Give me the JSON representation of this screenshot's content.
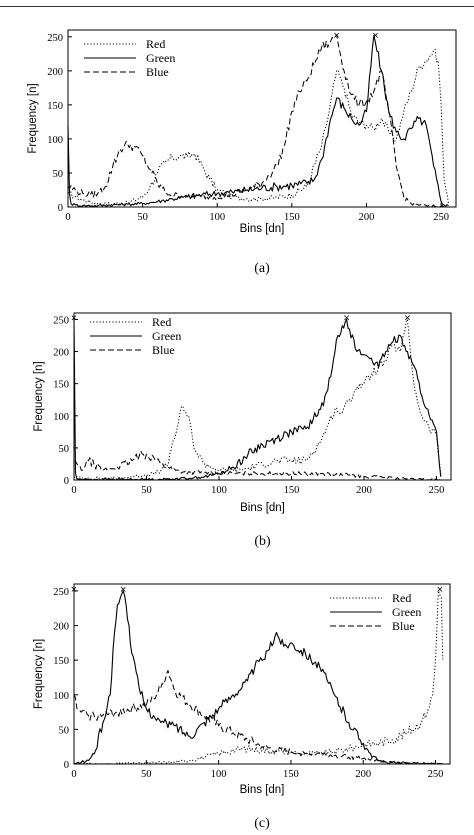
{
  "chart_data": [
    {
      "type": "line",
      "caption": "(a)",
      "xlabel": "Bins [dn]",
      "ylabel": "Frequency [n]",
      "xlim": [
        0,
        260
      ],
      "ylim": [
        0,
        260
      ],
      "xticks": [
        0,
        50,
        100,
        150,
        200,
        250
      ],
      "yticks": [
        0,
        50,
        100,
        150,
        200,
        250
      ],
      "legend_position": "top-left",
      "peak_markers": [
        {
          "x": 180,
          "y": 253,
          "label": "×"
        },
        {
          "x": 206,
          "y": 253,
          "label": "×"
        }
      ],
      "series": [
        {
          "name": "Red",
          "style": "dotted",
          "x": [
            0,
            5,
            10,
            20,
            30,
            40,
            50,
            55,
            60,
            65,
            70,
            75,
            80,
            85,
            90,
            95,
            100,
            110,
            120,
            130,
            140,
            150,
            160,
            170,
            175,
            180,
            185,
            190,
            195,
            200,
            205,
            210,
            215,
            220,
            225,
            230,
            235,
            240,
            245,
            248,
            250,
            252,
            255
          ],
          "y": [
            20,
            15,
            10,
            5,
            5,
            6,
            15,
            30,
            50,
            65,
            72,
            75,
            74,
            78,
            60,
            40,
            25,
            15,
            12,
            12,
            14,
            18,
            30,
            90,
            140,
            200,
            175,
            135,
            125,
            120,
            115,
            130,
            110,
            100,
            140,
            170,
            205,
            215,
            230,
            215,
            150,
            40,
            5
          ]
        },
        {
          "name": "Green",
          "style": "solid",
          "x": [
            0,
            1,
            2,
            5,
            10,
            20,
            30,
            40,
            50,
            60,
            70,
            80,
            90,
            100,
            110,
            120,
            130,
            140,
            150,
            160,
            165,
            170,
            175,
            180,
            185,
            190,
            195,
            200,
            205,
            210,
            215,
            220,
            225,
            230,
            235,
            240,
            245,
            250,
            252,
            255
          ],
          "y": [
            120,
            20,
            5,
            3,
            2,
            2,
            3,
            4,
            5,
            8,
            12,
            15,
            18,
            20,
            22,
            25,
            28,
            30,
            32,
            35,
            40,
            70,
            120,
            160,
            145,
            130,
            120,
            140,
            252,
            200,
            140,
            110,
            100,
            115,
            130,
            120,
            60,
            8,
            3,
            2
          ]
        },
        {
          "name": "Blue",
          "style": "dashed",
          "x": [
            0,
            5,
            10,
            15,
            20,
            25,
            30,
            35,
            40,
            45,
            50,
            55,
            60,
            65,
            70,
            80,
            90,
            100,
            110,
            120,
            130,
            140,
            145,
            150,
            155,
            160,
            170,
            175,
            180,
            185,
            190,
            195,
            200,
            205,
            210,
            215,
            220,
            225,
            230,
            240,
            250,
            255
          ],
          "y": [
            30,
            25,
            20,
            18,
            20,
            30,
            60,
            85,
            92,
            88,
            75,
            55,
            35,
            22,
            18,
            15,
            15,
            15,
            18,
            25,
            35,
            60,
            90,
            140,
            170,
            185,
            235,
            240,
            253,
            200,
            165,
            150,
            155,
            170,
            200,
            140,
            60,
            15,
            5,
            2,
            1,
            0
          ]
        }
      ]
    },
    {
      "type": "line",
      "caption": "(b)",
      "xlabel": "Bins [dn]",
      "ylabel": "Frequency [n]",
      "xlim": [
        0,
        260
      ],
      "ylim": [
        0,
        260
      ],
      "xticks": [
        0,
        50,
        100,
        150,
        200,
        250
      ],
      "yticks": [
        0,
        50,
        100,
        150,
        200,
        250
      ],
      "legend_position": "top-center",
      "peak_markers": [
        {
          "x": 0,
          "y": 253,
          "label": "×"
        },
        {
          "x": 188,
          "y": 253,
          "label": "×"
        },
        {
          "x": 230,
          "y": 253,
          "label": "×"
        }
      ],
      "series": [
        {
          "name": "Red",
          "style": "dotted",
          "x": [
            0,
            5,
            10,
            20,
            30,
            40,
            50,
            55,
            60,
            65,
            68,
            70,
            72,
            75,
            78,
            80,
            82,
            85,
            90,
            95,
            100,
            110,
            120,
            130,
            140,
            150,
            160,
            170,
            175,
            180,
            185,
            190,
            195,
            200,
            205,
            210,
            215,
            220,
            225,
            228,
            230,
            232,
            235,
            240,
            245,
            250,
            253
          ],
          "y": [
            5,
            3,
            3,
            3,
            3,
            5,
            8,
            10,
            15,
            25,
            60,
            70,
            90,
            115,
            100,
            90,
            60,
            40,
            25,
            20,
            15,
            15,
            18,
            25,
            30,
            30,
            30,
            60,
            85,
            110,
            105,
            125,
            145,
            150,
            165,
            175,
            185,
            210,
            200,
            230,
            250,
            200,
            140,
            100,
            80,
            70,
            10
          ]
        },
        {
          "name": "Green",
          "style": "solid",
          "x": [
            0,
            1,
            2,
            5,
            10,
            20,
            30,
            40,
            50,
            60,
            70,
            80,
            90,
            100,
            110,
            120,
            130,
            140,
            150,
            160,
            165,
            170,
            175,
            180,
            182,
            185,
            188,
            190,
            195,
            200,
            205,
            210,
            215,
            220,
            225,
            230,
            235,
            240,
            245,
            250,
            253
          ],
          "y": [
            250,
            10,
            2,
            1,
            1,
            1,
            1,
            1,
            1,
            1,
            2,
            3,
            5,
            10,
            20,
            40,
            55,
            65,
            75,
            80,
            95,
            110,
            140,
            200,
            225,
            240,
            250,
            235,
            200,
            195,
            190,
            175,
            200,
            215,
            225,
            200,
            175,
            130,
            100,
            75,
            5
          ]
        },
        {
          "name": "Blue",
          "style": "dashed",
          "x": [
            0,
            2,
            5,
            10,
            20,
            30,
            40,
            45,
            50,
            55,
            60,
            65,
            70,
            80,
            90,
            100,
            110,
            120,
            130,
            140,
            150,
            160,
            170,
            180,
            190,
            200,
            210,
            220,
            230,
            240,
            250,
            253
          ],
          "y": [
            30,
            25,
            15,
            30,
            15,
            20,
            30,
            38,
            40,
            35,
            25,
            20,
            15,
            12,
            12,
            10,
            10,
            10,
            10,
            10,
            10,
            10,
            10,
            8,
            8,
            5,
            5,
            3,
            2,
            1,
            1,
            0
          ]
        }
      ]
    },
    {
      "type": "line",
      "caption": "(c)",
      "xlabel": "Bins [dn]",
      "ylabel": "Frequency [n]",
      "xlim": [
        0,
        260
      ],
      "ylim": [
        0,
        260
      ],
      "xticks": [
        0,
        50,
        100,
        150,
        200,
        250
      ],
      "yticks": [
        0,
        50,
        100,
        150,
        200,
        250
      ],
      "legend_position": "top-right",
      "peak_markers": [
        {
          "x": 0,
          "y": 253,
          "label": "×"
        },
        {
          "x": 34,
          "y": 253,
          "label": "×"
        },
        {
          "x": 253,
          "y": 253,
          "label": "×"
        }
      ],
      "series": [
        {
          "name": "Red",
          "style": "dotted",
          "x": [
            0,
            10,
            20,
            30,
            40,
            50,
            60,
            70,
            80,
            90,
            100,
            110,
            120,
            130,
            140,
            150,
            160,
            170,
            180,
            190,
            200,
            210,
            220,
            230,
            240,
            245,
            248,
            250,
            252,
            254,
            255
          ],
          "y": [
            0,
            0,
            0,
            1,
            1,
            1,
            2,
            3,
            5,
            10,
            15,
            20,
            22,
            20,
            18,
            17,
            15,
            15,
            18,
            22,
            28,
            30,
            35,
            45,
            60,
            80,
            100,
            150,
            250,
            240,
            150
          ]
        },
        {
          "name": "Green",
          "style": "solid",
          "x": [
            0,
            10,
            15,
            20,
            25,
            28,
            30,
            32,
            34,
            36,
            38,
            40,
            45,
            50,
            55,
            60,
            70,
            80,
            90,
            100,
            110,
            120,
            125,
            130,
            135,
            140,
            145,
            150,
            160,
            170,
            180,
            190,
            200,
            205,
            210,
            215,
            220,
            230,
            240,
            250,
            255
          ],
          "y": [
            0,
            5,
            20,
            60,
            100,
            190,
            230,
            240,
            250,
            230,
            200,
            160,
            110,
            80,
            70,
            60,
            55,
            40,
            60,
            80,
            100,
            120,
            140,
            150,
            165,
            190,
            170,
            175,
            160,
            140,
            100,
            60,
            30,
            15,
            5,
            3,
            2,
            1,
            0,
            0,
            0
          ]
        },
        {
          "name": "Blue",
          "style": "dashed",
          "x": [
            0,
            2,
            5,
            10,
            20,
            30,
            40,
            50,
            55,
            60,
            65,
            70,
            80,
            90,
            100,
            110,
            120,
            130,
            140,
            150,
            160,
            170,
            180,
            190,
            200,
            210,
            220,
            230,
            240,
            250,
            255
          ],
          "y": [
            100,
            80,
            75,
            70,
            70,
            75,
            80,
            85,
            95,
            110,
            135,
            105,
            85,
            70,
            55,
            45,
            35,
            25,
            20,
            18,
            15,
            15,
            12,
            10,
            8,
            5,
            3,
            2,
            1,
            1,
            0
          ]
        }
      ]
    }
  ]
}
